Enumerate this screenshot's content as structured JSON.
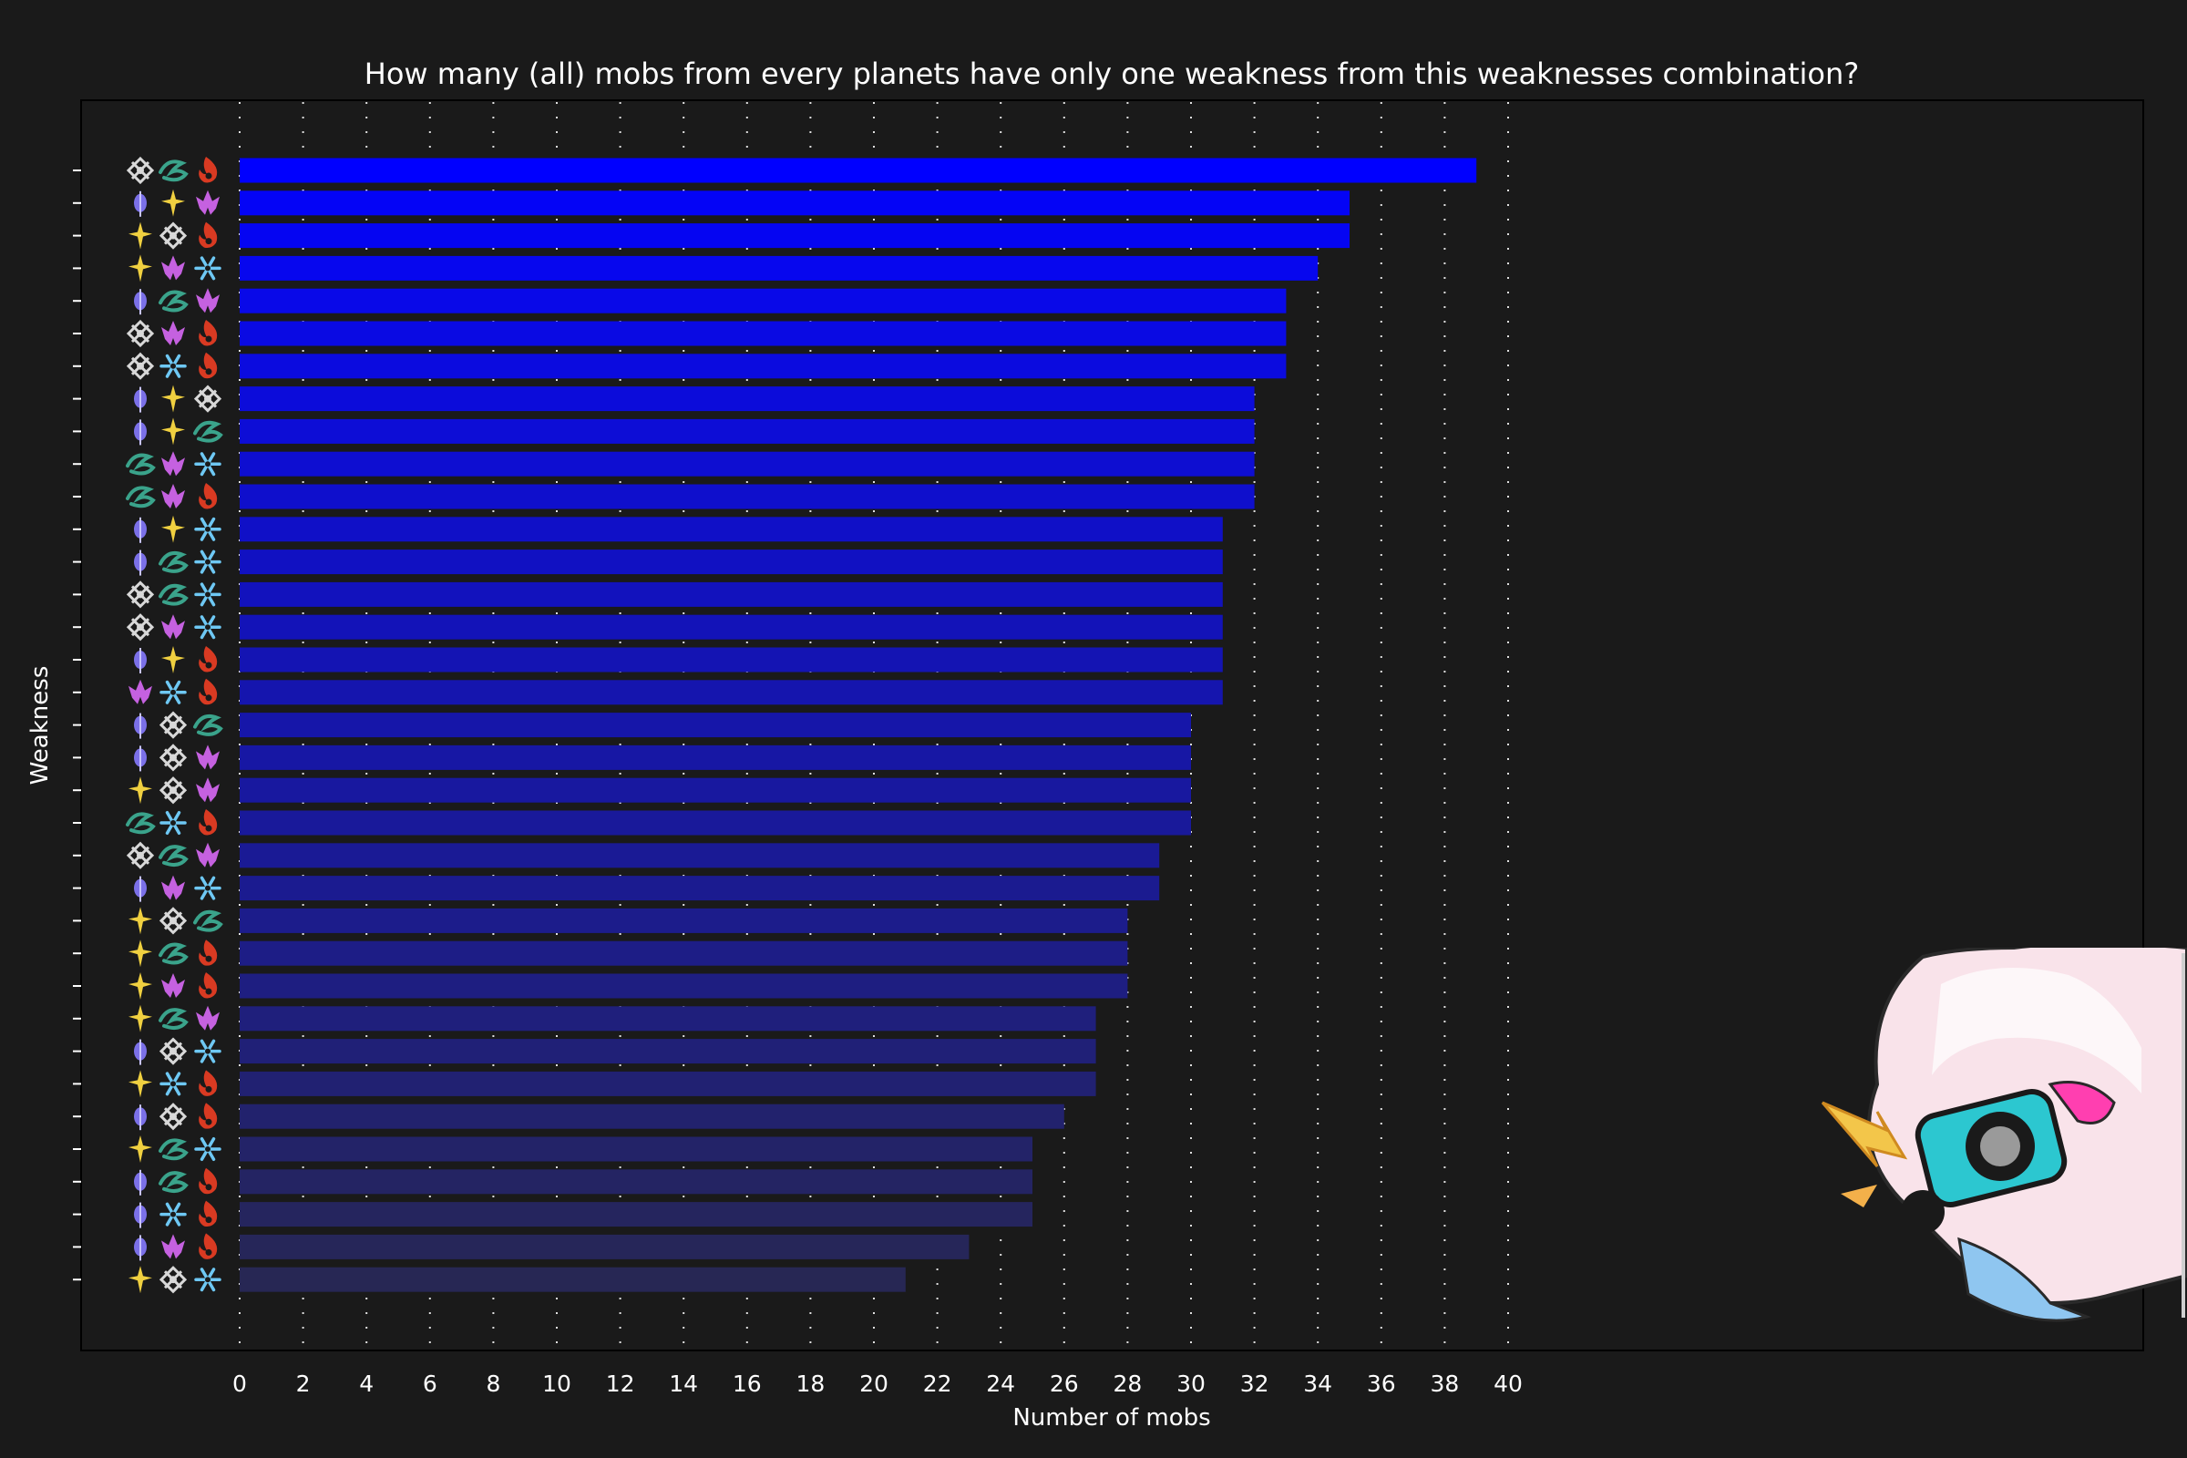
{
  "chart_data": {
    "type": "bar",
    "orientation": "horizontal",
    "title": "How many (all) mobs from every planets have only one weakness from this weaknesses combination?",
    "xlabel": "Number of mobs",
    "ylabel": "Weakness",
    "xlim": [
      0,
      40
    ],
    "x_ticks": [
      "0",
      "2",
      "4",
      "6",
      "8",
      "10",
      "12",
      "14",
      "16",
      "18",
      "20",
      "22",
      "24",
      "26",
      "28",
      "30",
      "32",
      "34",
      "36",
      "38",
      "40"
    ],
    "grid": "vertical dotted",
    "element_colors": {
      "physical": "#d8d8d8",
      "wind": "#3aa38b",
      "fire": "#d93a22",
      "quantum": "#7b70e8",
      "imaginary": "#f0d040",
      "lightning": "#c561e0",
      "ice": "#6ec8f4"
    },
    "categories": [
      [
        "physical",
        "wind",
        "fire"
      ],
      [
        "quantum",
        "imaginary",
        "lightning"
      ],
      [
        "imaginary",
        "physical",
        "fire"
      ],
      [
        "imaginary",
        "lightning",
        "ice"
      ],
      [
        "quantum",
        "wind",
        "lightning"
      ],
      [
        "physical",
        "lightning",
        "fire"
      ],
      [
        "physical",
        "ice",
        "fire"
      ],
      [
        "quantum",
        "imaginary",
        "physical"
      ],
      [
        "quantum",
        "imaginary",
        "wind"
      ],
      [
        "wind",
        "lightning",
        "ice"
      ],
      [
        "wind",
        "lightning",
        "fire"
      ],
      [
        "quantum",
        "imaginary",
        "ice"
      ],
      [
        "quantum",
        "wind",
        "ice"
      ],
      [
        "physical",
        "wind",
        "ice"
      ],
      [
        "physical",
        "lightning",
        "ice"
      ],
      [
        "quantum",
        "imaginary",
        "fire"
      ],
      [
        "lightning",
        "ice",
        "fire"
      ],
      [
        "quantum",
        "physical",
        "wind"
      ],
      [
        "quantum",
        "physical",
        "lightning"
      ],
      [
        "imaginary",
        "physical",
        "lightning"
      ],
      [
        "wind",
        "ice",
        "fire"
      ],
      [
        "physical",
        "wind",
        "lightning"
      ],
      [
        "quantum",
        "lightning",
        "ice"
      ],
      [
        "imaginary",
        "physical",
        "wind"
      ],
      [
        "imaginary",
        "wind",
        "fire"
      ],
      [
        "imaginary",
        "lightning",
        "fire"
      ],
      [
        "imaginary",
        "wind",
        "lightning"
      ],
      [
        "quantum",
        "physical",
        "ice"
      ],
      [
        "imaginary",
        "ice",
        "fire"
      ],
      [
        "quantum",
        "physical",
        "fire"
      ],
      [
        "imaginary",
        "wind",
        "ice"
      ],
      [
        "quantum",
        "wind",
        "fire"
      ],
      [
        "quantum",
        "ice",
        "fire"
      ],
      [
        "quantum",
        "lightning",
        "fire"
      ],
      [
        "imaginary",
        "physical",
        "ice"
      ]
    ],
    "values": [
      39,
      35,
      35,
      34,
      33,
      33,
      33,
      32,
      32,
      32,
      32,
      31,
      31,
      31,
      31,
      31,
      31,
      30,
      30,
      30,
      30,
      29,
      29,
      28,
      28,
      28,
      27,
      27,
      27,
      26,
      25,
      25,
      25,
      23,
      21
    ],
    "bar_colors": [
      "#0000ff",
      "#0404f6",
      "#0505f2",
      "#0707ee",
      "#0909e8",
      "#0a0ae3",
      "#0b0bdf",
      "#0c0cda",
      "#0d0dd6",
      "#0e0ed1",
      "#0f0fcc",
      "#1010c7",
      "#1111c2",
      "#1212bd",
      "#1313b8",
      "#1414b3",
      "#1515ae",
      "#1616a9",
      "#1717a4",
      "#18189f",
      "#19199a",
      "#1a1a95",
      "#1b1b90",
      "#1c1c8b",
      "#1d1d86",
      "#1e1e81",
      "#1f1f7c",
      "#202077",
      "#212172",
      "#22226d",
      "#232368",
      "#242463",
      "#25255e",
      "#262659",
      "#272754"
    ]
  }
}
